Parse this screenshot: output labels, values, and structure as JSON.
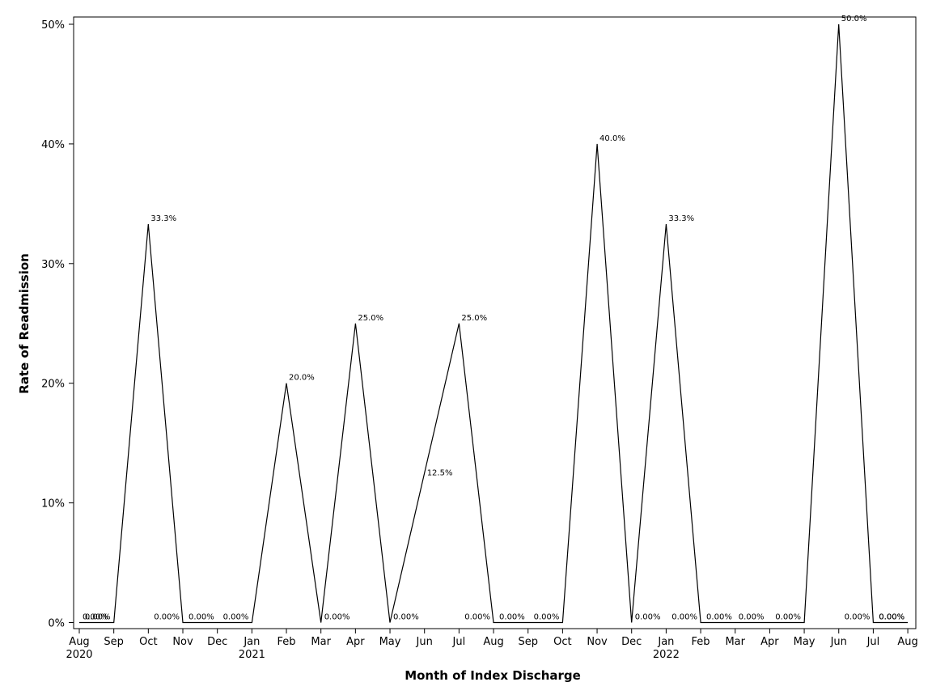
{
  "chart_data": {
    "type": "line",
    "title": "",
    "xlabel": "Month of Index Discharge",
    "ylabel": "Rate of Readmission",
    "ylim": [
      0,
      50
    ],
    "y_ticks": [
      "0%",
      "10%",
      "20%",
      "30%",
      "40%",
      "50%"
    ],
    "y_tick_values": [
      0,
      10,
      20,
      30,
      40,
      50
    ],
    "x_ticks": [
      "Aug",
      "Sep",
      "Oct",
      "Nov",
      "Dec",
      "Jan",
      "Feb",
      "Mar",
      "Apr",
      "May",
      "Jun",
      "Jul",
      "Aug",
      "Sep",
      "Oct",
      "Nov",
      "Dec",
      "Jan",
      "Feb",
      "Mar",
      "Apr",
      "May",
      "Jun",
      "Jul",
      "Aug"
    ],
    "x_tick_dates": [
      "2020-08",
      "2020-09",
      "2020-10",
      "2020-11",
      "2020-12",
      "2021-01",
      "2021-02",
      "2021-03",
      "2021-04",
      "2021-05",
      "2021-06",
      "2021-07",
      "2021-08",
      "2021-09",
      "2021-10",
      "2021-11",
      "2021-12",
      "2022-01",
      "2022-02",
      "2022-03",
      "2022-04",
      "2022-05",
      "2022-06",
      "2022-07",
      "2022-08"
    ],
    "year_labels": [
      {
        "date": "2020-08",
        "label": "2020"
      },
      {
        "date": "2021-01",
        "label": "2021"
      },
      {
        "date": "2022-01",
        "label": "2022"
      }
    ],
    "grid": false,
    "legend": "none",
    "line_color": "#000000",
    "points": [
      {
        "x": "2020-08",
        "y": 0,
        "label": "0.00%"
      },
      {
        "x": "2020-09",
        "y": 0,
        "label": "0.00%"
      },
      {
        "x": "2020-10",
        "y": 33.3,
        "label": "33.3%"
      },
      {
        "x": "2020-11",
        "y": 0,
        "label": "0.00%"
      },
      {
        "x": "2020-11",
        "y": 0,
        "label": "0.00%"
      },
      {
        "x": "2021-01",
        "y": 0,
        "label": "0.00%"
      },
      {
        "x": "2021-02",
        "y": 20.0,
        "label": "20.0%"
      },
      {
        "x": "2021-03",
        "y": 0,
        "label": "0.00%"
      },
      {
        "x": "2021-04",
        "y": 25.0,
        "label": "25.0%"
      },
      {
        "x": "2021-05",
        "y": 0,
        "label": "0.00%"
      },
      {
        "x": "2021-06",
        "y": 12.5,
        "label": "12.5%"
      },
      {
        "x": "2021-07",
        "y": 25.0,
        "label": "25.0%"
      },
      {
        "x": "2021-08",
        "y": 0,
        "label": "0.00%"
      },
      {
        "x": "2021-08",
        "y": 0,
        "label": "0.00%"
      },
      {
        "x": "2021-10",
        "y": 0,
        "label": "0.00%"
      },
      {
        "x": "2021-11",
        "y": 40.0,
        "label": "40.0%"
      },
      {
        "x": "2021-12",
        "y": 0,
        "label": "0.00%"
      },
      {
        "x": "2022-01",
        "y": 33.3,
        "label": "33.3%"
      },
      {
        "x": "2022-02",
        "y": 0,
        "label": "0.00%"
      },
      {
        "x": "2022-02",
        "y": 0,
        "label": "0.00%"
      },
      {
        "x": "2022-03",
        "y": 0,
        "label": "0.00%"
      },
      {
        "x": "2022-05",
        "y": 0,
        "label": "0.00%"
      },
      {
        "x": "2022-06",
        "y": 50.0,
        "label": "50.0%"
      },
      {
        "x": "2022-07",
        "y": 0,
        "label": "0.00%"
      },
      {
        "x": "2022-07",
        "y": 0,
        "label": "0.00%"
      },
      {
        "x": "2022-08",
        "y": 0,
        "label": "0.00%"
      }
    ]
  }
}
